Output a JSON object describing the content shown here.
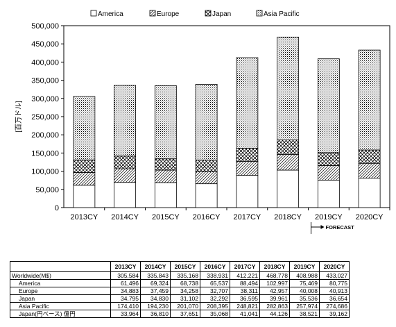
{
  "chart_data": {
    "type": "bar",
    "stacked": true,
    "categories": [
      "2013CY",
      "2014CY",
      "2015CY",
      "2016CY",
      "2017CY",
      "2018CY",
      "2019CY",
      "2020CY"
    ],
    "series": [
      {
        "name": "America",
        "values": [
          61496,
          69324,
          68738,
          65537,
          88494,
          102997,
          75469,
          80775
        ],
        "pattern": "solid-white"
      },
      {
        "name": "Europe",
        "values": [
          34883,
          37459,
          34258,
          32707,
          38311,
          42957,
          40008,
          40913
        ],
        "pattern": "diagonal-hatch"
      },
      {
        "name": "Japan",
        "values": [
          34795,
          34830,
          31102,
          32292,
          36595,
          39961,
          35536,
          36654
        ],
        "pattern": "diamond-hatch"
      },
      {
        "name": "Asia Pacific",
        "values": [
          174410,
          194230,
          201070,
          208395,
          248821,
          282863,
          257974,
          274686
        ],
        "pattern": "dots"
      }
    ],
    "ylabel": "[百万ドル]",
    "ylim": [
      0,
      500000
    ],
    "yticks": [
      "0",
      "50,000",
      "100,000",
      "150,000",
      "200,000",
      "250,000",
      "300,000",
      "350,000",
      "400,000",
      "450,000",
      "500,000"
    ],
    "legend_position": "top",
    "annotation": "FORECAST"
  },
  "table": {
    "headers": [
      "2013CY",
      "2014CY",
      "2015CY",
      "2016CY",
      "2017CY",
      "2018CY",
      "2019CY",
      "2020CY"
    ],
    "rows": [
      {
        "label": "Worldwide(M$)",
        "sub": false,
        "values": [
          "305,584",
          "335,843",
          "335,168",
          "338,931",
          "412,221",
          "468,778",
          "408,988",
          "433,027"
        ]
      },
      {
        "label": "America",
        "sub": true,
        "values": [
          "61,496",
          "69,324",
          "68,738",
          "65,537",
          "88,494",
          "102,997",
          "75,469",
          "80,775"
        ]
      },
      {
        "label": "Europe",
        "sub": true,
        "values": [
          "34,883",
          "37,459",
          "34,258",
          "32,707",
          "38,311",
          "42,957",
          "40,008",
          "40,913"
        ]
      },
      {
        "label": "Japan",
        "sub": true,
        "values": [
          "34,795",
          "34,830",
          "31,102",
          "32,292",
          "36,595",
          "39,961",
          "35,536",
          "36,654"
        ]
      },
      {
        "label": "Asia Pacific",
        "sub": true,
        "values": [
          "174,410",
          "194,230",
          "201,070",
          "208,395",
          "248,821",
          "282,863",
          "257,974",
          "274,686"
        ]
      },
      {
        "label": "Japan(円ベース) 億円",
        "sub": true,
        "values": [
          "33,964",
          "36,810",
          "37,651",
          "35,068",
          "41,041",
          "44,126",
          "38,521",
          "39,162"
        ]
      }
    ]
  }
}
